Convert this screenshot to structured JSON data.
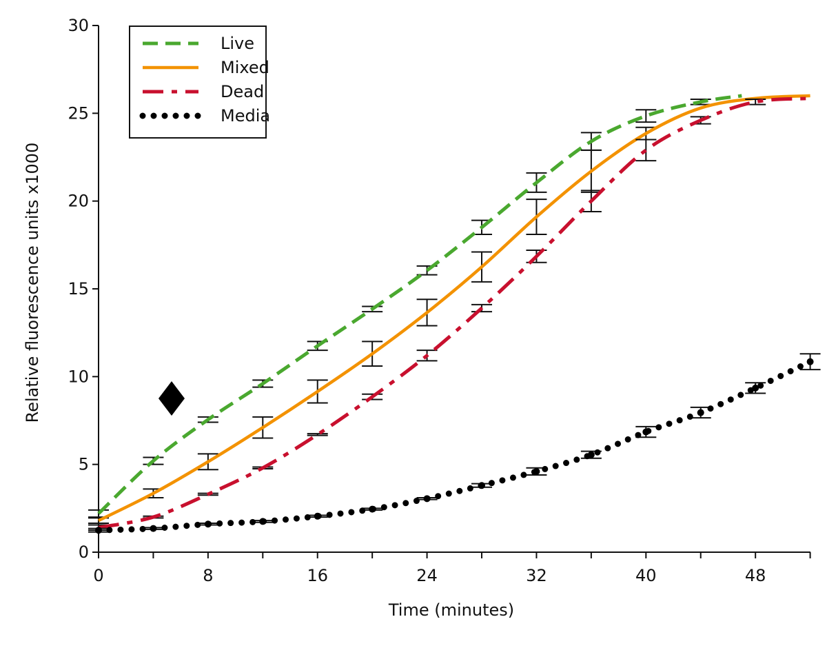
{
  "chart_data": {
    "type": "line",
    "xlabel": "Time (minutes)",
    "ylabel": "Relative fluorescence units x1000",
    "xlim": [
      0,
      52
    ],
    "xticks": [
      0,
      8,
      16,
      24,
      32,
      40,
      48
    ],
    "xminorticks": [
      4,
      12,
      20,
      28,
      36,
      44,
      52
    ],
    "ylim": [
      0,
      30
    ],
    "yticks": [
      0,
      5,
      10,
      15,
      20,
      25,
      30
    ],
    "legend": "upper left",
    "series": [
      {
        "name": "Live",
        "color": "#4aa82f",
        "style": "dashed",
        "x": [
          0,
          4,
          8,
          12,
          16,
          20,
          24,
          28,
          32,
          36,
          40,
          44,
          47
        ],
        "values": [
          2.2,
          5.2,
          7.55,
          9.6,
          11.75,
          13.85,
          16.05,
          18.5,
          21.05,
          23.4,
          24.85,
          25.65,
          26.0
        ],
        "errors": [
          0.2,
          0.2,
          0.15,
          0.2,
          0.25,
          0.15,
          0.25,
          0.4,
          0.55,
          0.5,
          0.35,
          0.15,
          null
        ]
      },
      {
        "name": "Mixed",
        "color": "#f39200",
        "style": "solid",
        "x": [
          0,
          4,
          8,
          12,
          16,
          20,
          24,
          28,
          32,
          36,
          40,
          44,
          48,
          52
        ],
        "values": [
          1.8,
          3.35,
          5.15,
          7.1,
          9.15,
          11.3,
          13.65,
          16.25,
          19.1,
          21.7,
          23.85,
          25.3,
          25.85,
          26.0
        ],
        "errors": [
          0.15,
          0.25,
          0.45,
          0.6,
          0.65,
          0.7,
          0.75,
          0.85,
          1.0,
          1.2,
          0.35,
          null,
          null,
          null
        ]
      },
      {
        "name": "Dead",
        "color": "#c8102e",
        "style": "dashdot",
        "x": [
          0,
          4,
          8,
          12,
          16,
          20,
          24,
          28,
          32,
          36,
          40,
          44,
          48,
          52
        ],
        "values": [
          1.4,
          2.0,
          3.3,
          4.8,
          6.7,
          8.85,
          11.2,
          13.9,
          16.85,
          20.0,
          22.9,
          24.6,
          25.65,
          25.85
        ],
        "errors": [
          0.15,
          0.05,
          0.05,
          0.05,
          0.05,
          0.15,
          0.3,
          0.2,
          0.35,
          0.6,
          0.6,
          0.2,
          0.15,
          null
        ]
      },
      {
        "name": "Media",
        "color": "#000000",
        "style": "dotted",
        "x": [
          0,
          4,
          8,
          12,
          16,
          20,
          24,
          28,
          32,
          36,
          40,
          44,
          48,
          52
        ],
        "values": [
          1.25,
          1.35,
          1.6,
          1.75,
          2.05,
          2.45,
          3.05,
          3.8,
          4.6,
          5.55,
          6.85,
          7.95,
          9.35,
          10.85
        ],
        "errors": [
          0.1,
          0.05,
          0.05,
          0.05,
          0.05,
          0.05,
          0.05,
          0.1,
          0.2,
          0.2,
          0.3,
          0.3,
          0.3,
          0.45
        ]
      }
    ]
  }
}
